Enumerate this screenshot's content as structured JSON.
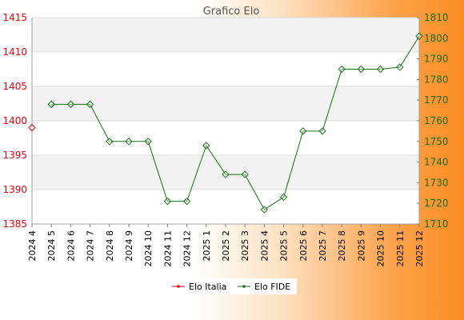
{
  "chart_data": {
    "type": "line",
    "title": "Grafico Elo",
    "categories": [
      "2024 4",
      "2024 5",
      "2024 6",
      "2024 7",
      "2024 8",
      "2024 9",
      "2024 10",
      "2024 11",
      "2024 12",
      "2025 1",
      "2025 2",
      "2025 3",
      "2025 4",
      "2025 5",
      "2025 6",
      "2025 7",
      "2025 8",
      "2025 9",
      "2025 10",
      "2025 11",
      "2025 12"
    ],
    "y_left": {
      "ticks": [
        1385,
        1390,
        1395,
        1400,
        1405,
        1410,
        1415
      ],
      "ylim": [
        1385,
        1415
      ]
    },
    "y_right": {
      "ticks": [
        1710,
        1720,
        1730,
        1740,
        1750,
        1760,
        1770,
        1780,
        1790,
        1800,
        1810
      ],
      "ylim": [
        1710,
        1810
      ]
    },
    "grid": true,
    "legend_position": "bottom",
    "series": [
      {
        "name": "Elo Italia",
        "axis": "left",
        "color": "#e8000b",
        "values": [
          1399,
          null,
          null,
          null,
          null,
          null,
          null,
          null,
          null,
          null,
          null,
          null,
          null,
          null,
          null,
          null,
          null,
          null,
          null,
          null,
          null
        ]
      },
      {
        "name": "Elo FIDE",
        "axis": "right",
        "color": "#1a6e1a",
        "values": [
          null,
          1768,
          1768,
          1768,
          1750,
          1750,
          1750,
          1721,
          1721,
          1748,
          1734,
          1734,
          1717,
          1723,
          1755,
          1755,
          1785,
          1785,
          1785,
          1786,
          1801
        ]
      }
    ]
  }
}
